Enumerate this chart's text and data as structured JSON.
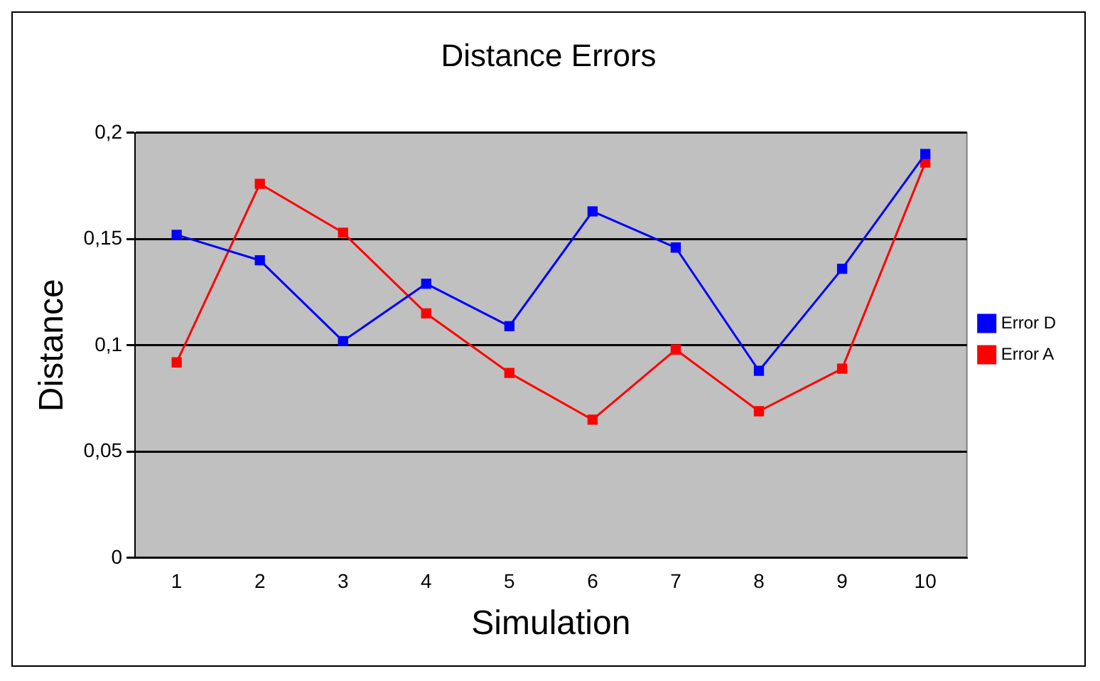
{
  "chart_data": {
    "type": "line",
    "title": "Distance Errors",
    "xlabel": "Simulation",
    "ylabel": "Distance",
    "categories": [
      "1",
      "2",
      "3",
      "4",
      "5",
      "6",
      "7",
      "8",
      "9",
      "10"
    ],
    "series": [
      {
        "name": "Error D",
        "color": "#0000ff",
        "values": [
          0.152,
          0.14,
          0.102,
          0.129,
          0.109,
          0.163,
          0.146,
          0.088,
          0.136,
          0.19
        ]
      },
      {
        "name": "Error A",
        "color": "#ff0000",
        "values": [
          0.092,
          0.176,
          0.153,
          0.115,
          0.087,
          0.065,
          0.098,
          0.069,
          0.089,
          0.186
        ]
      }
    ],
    "ylim": [
      0,
      0.2
    ],
    "yticks": [
      0,
      {
        "value": 0.05,
        "label": "0,05"
      },
      {
        "value": 0.1,
        "label": "0,1"
      },
      {
        "value": 0.15,
        "label": "0,15"
      },
      {
        "value": 0.2,
        "label": "0,2"
      }
    ],
    "grid": "y",
    "legend": "right",
    "marker": "square",
    "line_style": "solid"
  }
}
